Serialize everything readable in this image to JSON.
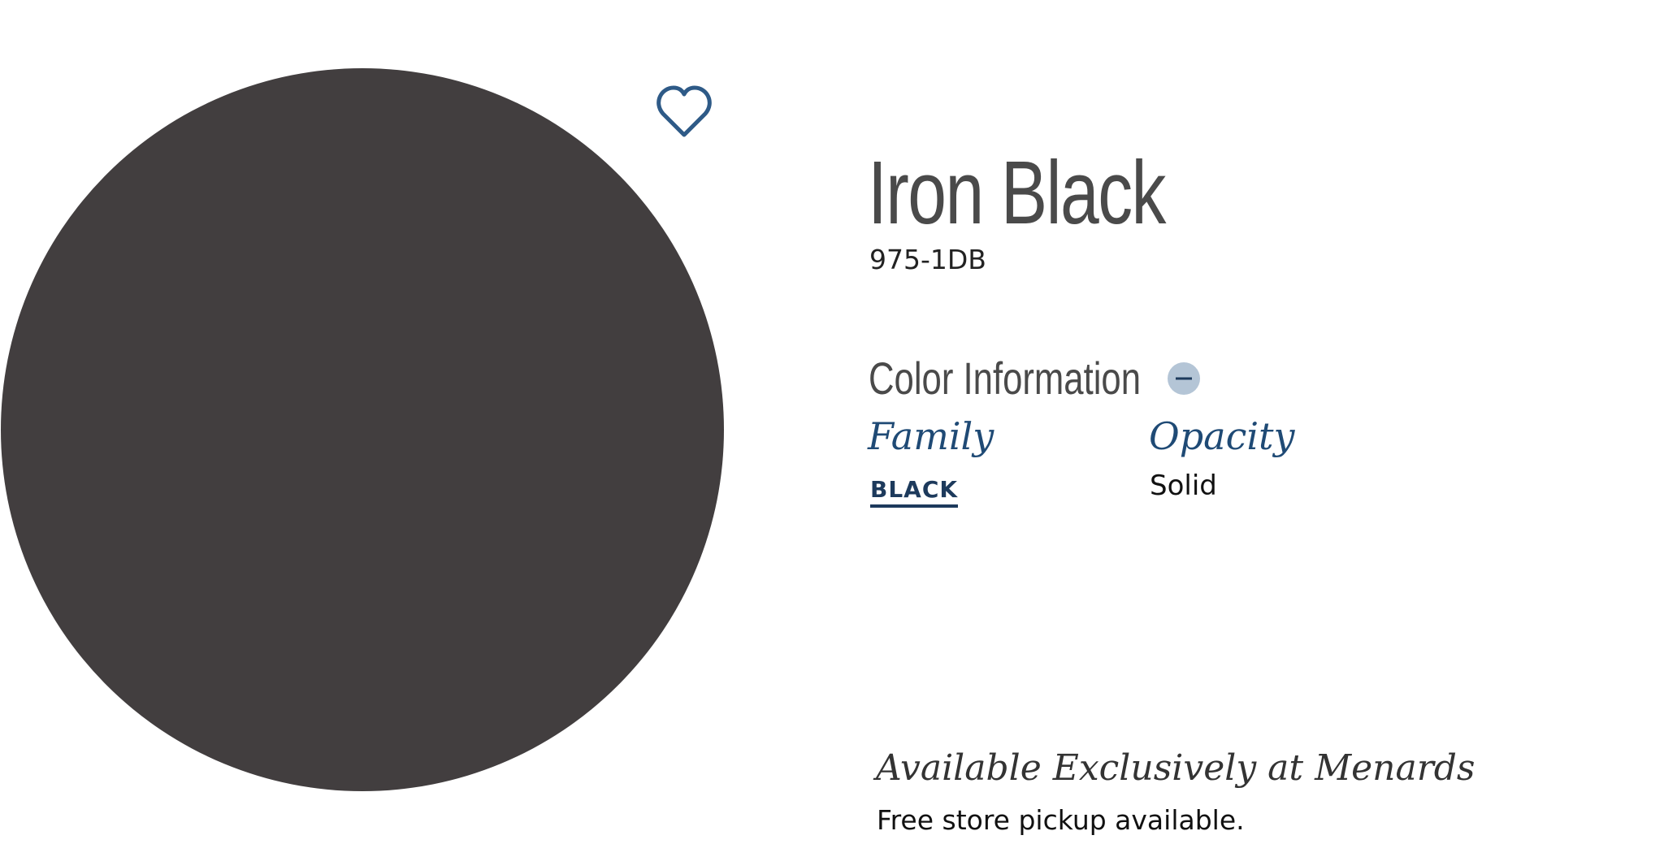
{
  "product": {
    "title": "Iron Black",
    "code": "975-1DB"
  },
  "color_information": {
    "heading": "Color Information",
    "family": {
      "label": "Family",
      "value": "BLACK"
    },
    "opacity": {
      "label": "Opacity",
      "value": "Solid"
    }
  },
  "availability": {
    "heading": "Available Exclusively at Menards",
    "note": "Free store pickup available."
  }
}
